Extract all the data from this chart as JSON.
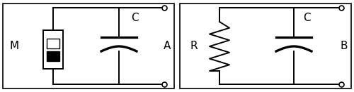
{
  "fig_width": 5.0,
  "fig_height": 1.31,
  "dpi": 100,
  "bg_color": "#ffffff",
  "border_color": "#000000",
  "line_color": "black",
  "line_width": 1.4,
  "label_A": "A",
  "label_B": "B",
  "label_M": "M",
  "label_R": "R",
  "label_C1": "C",
  "label_C2": "C",
  "font_size": 10
}
